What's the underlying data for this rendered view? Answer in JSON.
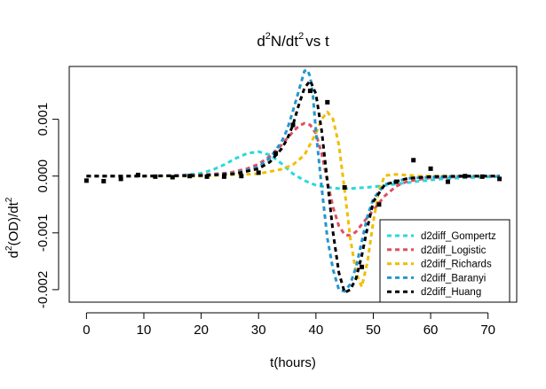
{
  "chart_data": {
    "type": "line",
    "title_main": "d",
    "title_sup1": "2",
    "title_mid": "N/dt",
    "title_sup2": "2",
    "title_end": "vs t",
    "xlabel": "t(hours)",
    "ylabel_a": "d",
    "ylabel_sup1": "2",
    "ylabel_b": "(OD)/dt",
    "ylabel_sup2": "2",
    "xlim": [
      -3,
      75
    ],
    "ylim": [
      -0.00222,
      0.00193
    ],
    "xticks": [
      0,
      10,
      20,
      30,
      40,
      50,
      60,
      70
    ],
    "xtick_labels": [
      "0",
      "10",
      "20",
      "30",
      "40",
      "50",
      "60",
      "70"
    ],
    "yticks": [
      -0.002,
      -0.001,
      0.0,
      0.001
    ],
    "ytick_labels": [
      "-0.002",
      "-0.001",
      "0.000",
      "0.001"
    ],
    "grid": false,
    "legend_position": "bottom-right",
    "points": {
      "x": [
        0,
        3,
        6,
        9,
        12,
        15,
        18,
        21,
        24,
        27,
        30,
        33,
        36,
        39,
        42,
        45,
        48,
        51,
        54,
        57,
        60,
        63,
        66,
        69,
        72
      ],
      "y": [
        -8e-05,
        -9e-05,
        -5e-05,
        2e-05,
        -1e-05,
        -2e-05,
        0.0,
        -1e-05,
        -1e-05,
        0.0,
        6e-05,
        0.0004,
        0.0009,
        0.0015,
        0.0013,
        -0.0002,
        -0.0016,
        -0.0005,
        -0.0001,
        0.00028,
        0.00013,
        -0.0001,
        0.0,
        -1e-05,
        -5e-05
      ]
    },
    "series": [
      {
        "name": "d2diff_Gompertz",
        "color": "#29D9D9",
        "x": [
          0,
          10,
          16,
          20,
          22,
          24,
          26,
          28,
          30,
          32,
          34,
          36,
          38,
          40,
          42,
          44,
          46,
          50,
          54,
          58,
          62,
          66,
          72
        ],
        "y": [
          0.0,
          0.0,
          1e-05,
          5e-05,
          0.00011,
          0.0002,
          0.00031,
          0.0004,
          0.00043,
          0.00037,
          0.00022,
          4e-05,
          -8e-05,
          -0.00016,
          -0.0002,
          -0.00022,
          -0.00022,
          -0.00019,
          -0.00014,
          -9e-05,
          -5e-05,
          -3e-05,
          -1e-05
        ]
      },
      {
        "name": "d2diff_Logistic",
        "color": "#DF4F61",
        "x": [
          0,
          10,
          20,
          25,
          28,
          30,
          32,
          34,
          36,
          37,
          38,
          39,
          40,
          41,
          42,
          43,
          44,
          45,
          46,
          47,
          48,
          50,
          52,
          54,
          56,
          60,
          66,
          72
        ],
        "y": [
          0.0,
          0.0,
          2e-05,
          6e-05,
          0.00013,
          0.00021,
          0.00035,
          0.00055,
          0.00078,
          0.00088,
          0.00093,
          0.0009,
          0.00075,
          0.0004,
          -0.0001,
          -0.00055,
          -0.00088,
          -0.00103,
          -0.00105,
          -0.00098,
          -0.00085,
          -0.0006,
          -0.00035,
          -0.00018,
          -9e-05,
          -3e-05,
          -1e-05,
          0.0
        ]
      },
      {
        "name": "d2diff_Richards",
        "color": "#F0BE00",
        "x": [
          0,
          10,
          20,
          30,
          34,
          36,
          38,
          40,
          41,
          42,
          43,
          44,
          45,
          46,
          47,
          48,
          49,
          50,
          51,
          52,
          54,
          58,
          64,
          72
        ],
        "y": [
          0.0,
          0.0,
          0.0,
          4e-05,
          0.00012,
          0.0002,
          0.00037,
          0.00075,
          0.001,
          0.00113,
          0.001,
          0.00055,
          -0.00025,
          -0.0011,
          -0.0017,
          -0.00195,
          -0.0015,
          -0.0008,
          -0.00025,
          1e-05,
          3e-05,
          0.0,
          0.0,
          0.0
        ]
      },
      {
        "name": "d2diff_Baranyi",
        "color": "#2396CF",
        "x": [
          0,
          10,
          20,
          26,
          30,
          32,
          34,
          35,
          36,
          37,
          38,
          38.5,
          39,
          39.5,
          40,
          41,
          42,
          43,
          44,
          45,
          46,
          47,
          48,
          49,
          50,
          52,
          56,
          60,
          66,
          72
        ],
        "y": [
          0.0,
          0.0,
          1e-05,
          5e-05,
          0.00016,
          0.00032,
          0.0006,
          0.00082,
          0.00115,
          0.0015,
          0.00185,
          0.00187,
          0.00175,
          0.0014,
          0.0008,
          -0.0002,
          -0.0011,
          -0.00165,
          -0.002,
          -0.00203,
          -0.0019,
          -0.0016,
          -0.00115,
          -0.0007,
          -0.0004,
          -0.00015,
          -4e-05,
          -2e-05,
          0.0,
          0.0
        ]
      },
      {
        "name": "d2diff_Huang",
        "color": "#000000",
        "x": [
          0,
          10,
          20,
          26,
          30,
          32,
          34,
          35,
          36,
          37,
          38,
          39,
          40,
          41,
          42,
          43,
          44,
          45,
          46,
          47,
          48,
          49,
          50,
          52,
          56,
          60,
          66,
          72
        ],
        "y": [
          0.0,
          0.0,
          1e-05,
          4e-05,
          0.00013,
          0.00025,
          0.00048,
          0.00065,
          0.0009,
          0.00125,
          0.00155,
          0.00168,
          0.00145,
          0.0008,
          -0.0001,
          -0.001,
          -0.0017,
          -0.00205,
          -0.002,
          -0.0018,
          -0.0014,
          -0.0009,
          -0.00045,
          -0.00015,
          -4e-05,
          -1e-05,
          0.0,
          0.0
        ]
      }
    ]
  }
}
